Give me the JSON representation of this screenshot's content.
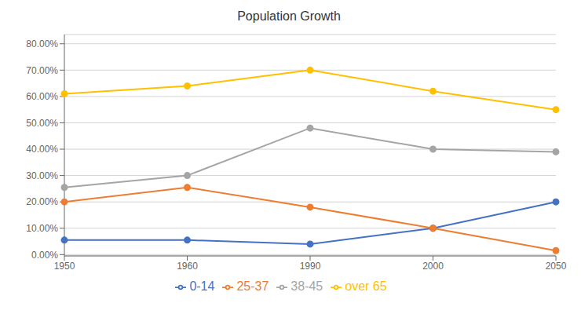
{
  "chart_data": {
    "type": "line",
    "title": "Population Growth",
    "categories": [
      "1950",
      "1960",
      "1990",
      "2000",
      "2050"
    ],
    "series": [
      {
        "name": "0-14",
        "color": "#4472C4",
        "marker": "circle",
        "values": [
          0.055,
          0.055,
          0.04,
          0.1,
          0.2
        ]
      },
      {
        "name": "25-37",
        "color": "#ED7D31",
        "marker": "circle",
        "values": [
          0.2,
          0.255,
          0.18,
          0.1,
          0.015
        ]
      },
      {
        "name": "38-45",
        "color": "#A5A5A5",
        "marker": "circle",
        "values": [
          0.255,
          0.3,
          0.48,
          0.4,
          0.39
        ]
      },
      {
        "name": "over 65",
        "color": "#FFC000",
        "marker": "circle",
        "values": [
          0.61,
          0.64,
          0.7,
          0.62,
          0.55
        ]
      }
    ],
    "ylim": [
      -0.005,
      0.835
    ],
    "yticks": [
      {
        "value": 0.0,
        "label": "0.00%"
      },
      {
        "value": 0.1,
        "label": "10.00%"
      },
      {
        "value": 0.2,
        "label": "20.00%"
      },
      {
        "value": 0.3,
        "label": "30.00%"
      },
      {
        "value": 0.4,
        "label": "40.00%"
      },
      {
        "value": 0.5,
        "label": "50.00%"
      },
      {
        "value": 0.6,
        "label": "60.00%"
      },
      {
        "value": 0.7,
        "label": "70.00%"
      },
      {
        "value": 0.8,
        "label": "80.00%"
      }
    ],
    "grid": true,
    "legend": "bottom"
  }
}
